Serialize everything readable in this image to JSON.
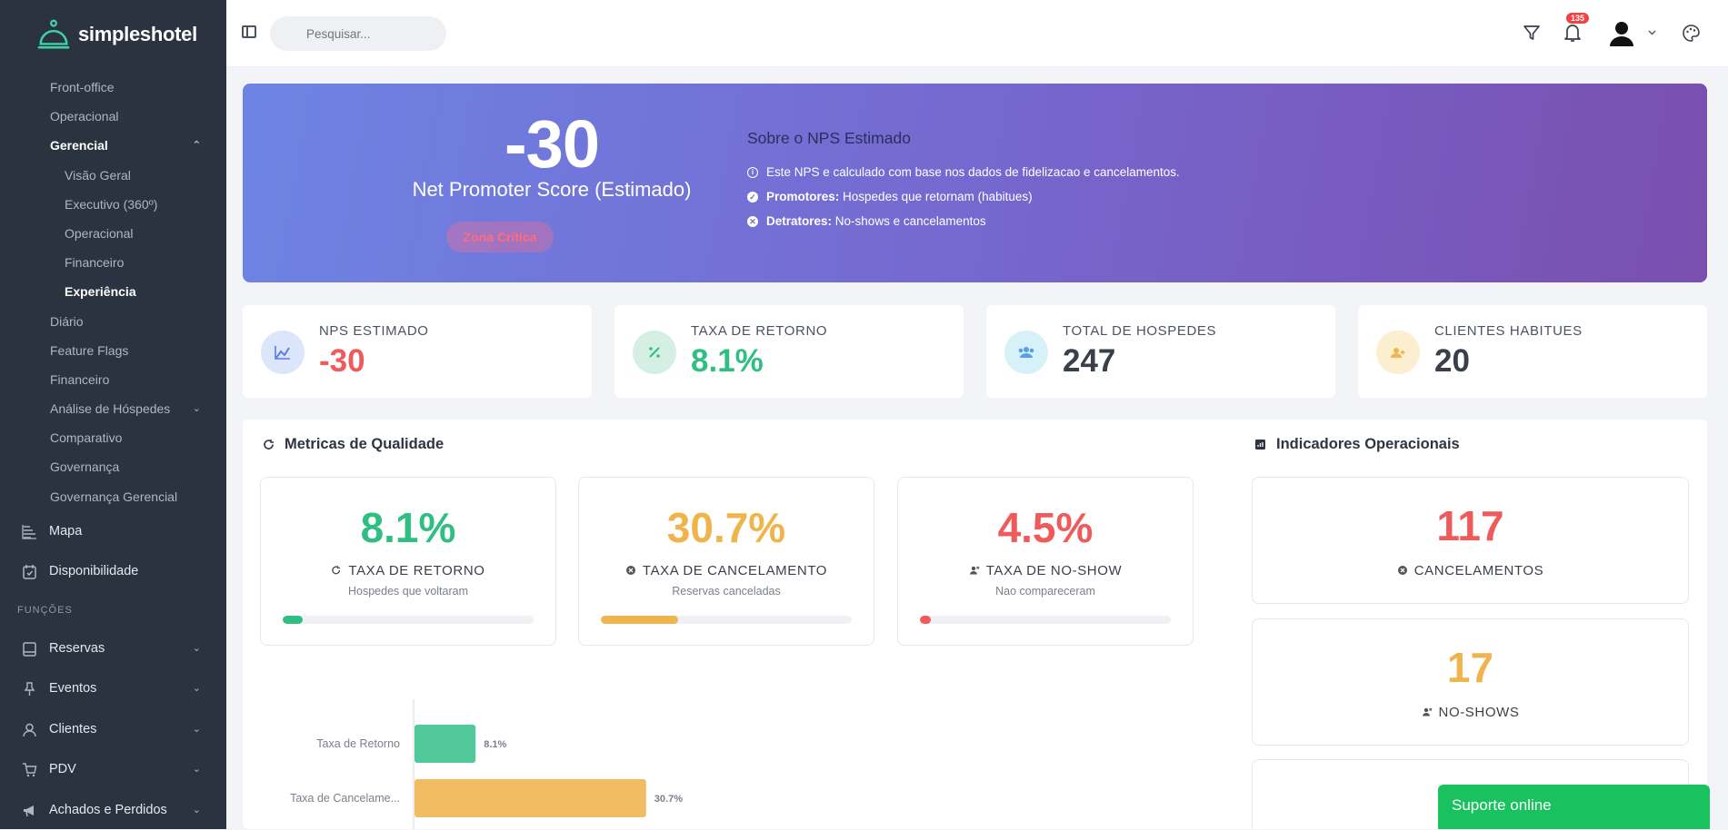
{
  "app": {
    "brand": "simpleshotel"
  },
  "sidebar": {
    "sub_items": [
      {
        "label": "Front-office"
      },
      {
        "label": "Operacional"
      },
      {
        "label": "Gerencial"
      },
      {
        "label": "Visão Geral"
      },
      {
        "label": "Executivo (360º)"
      },
      {
        "label": "Operacional"
      },
      {
        "label": "Financeiro"
      },
      {
        "label": "Experiência"
      },
      {
        "label": "Diário"
      },
      {
        "label": "Feature Flags"
      },
      {
        "label": "Financeiro"
      },
      {
        "label": "Análise de Hóspedes"
      },
      {
        "label": "Comparativo"
      },
      {
        "label": "Governança"
      },
      {
        "label": "Governança Gerencial"
      }
    ],
    "main_items": [
      {
        "label": "Mapa",
        "icon": "map-icon"
      },
      {
        "label": "Disponibilidade",
        "icon": "calendar-icon"
      }
    ],
    "section": "FUNÇÕES",
    "func_items": [
      {
        "label": "Reservas",
        "icon": "book-icon"
      },
      {
        "label": "Eventos",
        "icon": "pin-icon"
      },
      {
        "label": "Clientes",
        "icon": "user-icon"
      },
      {
        "label": "PDV",
        "icon": "cart-icon"
      },
      {
        "label": "Achados e Perdidos",
        "icon": "megaphone-icon"
      }
    ]
  },
  "topbar": {
    "search_placeholder": "Pesquisar...",
    "notifications_count": "135"
  },
  "banner": {
    "nps_value": "-30",
    "nps_caption": "Net Promoter Score (Estimado)",
    "zone": "Zona Crítica",
    "about_title": "Sobre o NPS Estimado",
    "about_line1": "Este NPS e calculado com base nos dados de fidelizacao e cancelamentos.",
    "promoters_label": "Promotores:",
    "promoters_text": "Hospedes que retornam (habitues)",
    "detractors_label": "Detratores:",
    "detractors_text": "No-shows e cancelamentos"
  },
  "stats": [
    {
      "label": "NPS ESTIMADO",
      "value": "-30",
      "color": "#ef5b5b",
      "icon": "chart-line-icon"
    },
    {
      "label": "TAXA DE RETORNO",
      "value": "8.1%",
      "color": "#2fbf83",
      "icon": "percent-icon"
    },
    {
      "label": "TOTAL DE HOSPEDES",
      "value": "247",
      "color": "#3a3f4a",
      "icon": "users-icon"
    },
    {
      "label": "CLIENTES HABITUES",
      "value": "20",
      "color": "#3a3f4a",
      "icon": "user-star-icon"
    }
  ],
  "quality": {
    "title": "Metricas de Qualidade",
    "cards": [
      {
        "value": "8.1%",
        "label": "TAXA DE RETORNO",
        "desc": "Hospedes que voltaram",
        "color": "#2fbf83",
        "progress": 8.1,
        "icon": "refresh-icon"
      },
      {
        "value": "30.7%",
        "label": "TAXA DE CANCELAMENTO",
        "desc": "Reservas canceladas",
        "color": "#f0b44c",
        "progress": 30.7,
        "icon": "x-circle-icon"
      },
      {
        "value": "4.5%",
        "label": "TAXA DE NO-SHOW",
        "desc": "Nao compareceram",
        "color": "#ef5b5b",
        "progress": 4.5,
        "icon": "user-x-icon"
      }
    ]
  },
  "operational": {
    "title": "Indicadores Operacionais",
    "cards": [
      {
        "value": "117",
        "label": "CANCELAMENTOS",
        "color": "#ef5b5b",
        "icon": "x-circle-icon"
      },
      {
        "value": "17",
        "label": "NO-SHOWS",
        "color": "#f0b44c",
        "icon": "user-x-icon"
      }
    ]
  },
  "chart_data": {
    "type": "bar",
    "orientation": "horizontal",
    "categories": [
      "Taxa de Retorno",
      "Taxa de Cancelame..."
    ],
    "values": [
      8.1,
      30.7
    ],
    "value_labels": [
      "8.1%",
      "30.7%"
    ],
    "colors": [
      "#52c99a",
      "#f2bd62"
    ]
  },
  "support": {
    "label": "Suporte online"
  }
}
